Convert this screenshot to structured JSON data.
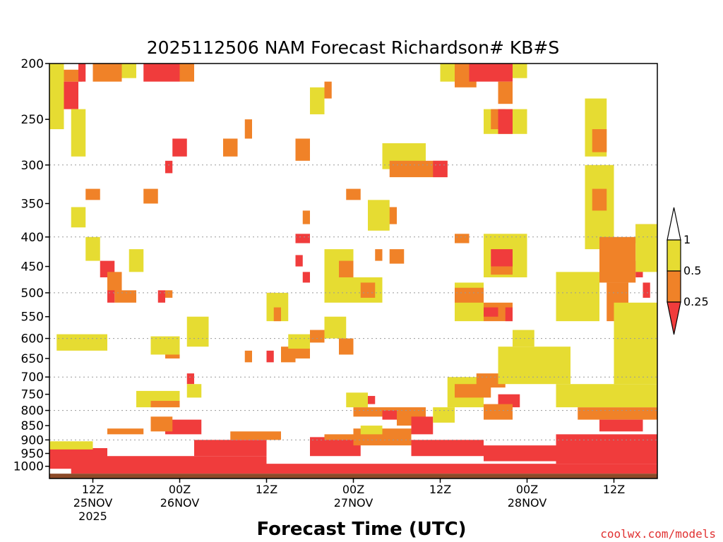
{
  "chart_data": {
    "type": "heatmap",
    "title": "2025112506 NAM Forecast Richardson# KB#S",
    "xlabel": "Forecast Time (UTC)",
    "ylabel": "",
    "y_scale": "log-pressure",
    "y_inverted": true,
    "ylim": [
      1050,
      200
    ],
    "y_ticks": [
      "200",
      "250",
      "300",
      "350",
      "400",
      "450",
      "500",
      "550",
      "600",
      "650",
      "700",
      "750",
      "800",
      "850",
      "900",
      "950",
      "1000"
    ],
    "x_ticks": [
      {
        "line1": "12Z",
        "line2": "25NOV",
        "line3": "2025",
        "hour": 6
      },
      {
        "line1": "00Z",
        "line2": "26NOV",
        "line3": "",
        "hour": 18
      },
      {
        "line1": "12Z",
        "line2": "",
        "line3": "",
        "hour": 30
      },
      {
        "line1": "00Z",
        "line2": "27NOV",
        "line3": "",
        "hour": 42
      },
      {
        "line1": "12Z",
        "line2": "",
        "line3": "",
        "hour": 54
      },
      {
        "line1": "00Z",
        "line2": "28NOV",
        "line3": "",
        "hour": 66
      },
      {
        "line1": "12Z",
        "line2": "",
        "line3": "",
        "hour": 78
      }
    ],
    "xlim_hours": [
      0,
      84
    ],
    "dotted_gridlines_hpa": [
      300,
      400,
      500,
      600,
      700,
      800,
      900
    ],
    "colorbar": {
      "labels": [
        "1",
        "0.5",
        "0.25"
      ],
      "colors": {
        "0.5-1": "#e6dc32",
        "0.25-0.5": "#f08228",
        "lt0.25": "#f03c3c",
        "gt1": "#ffffff"
      }
    },
    "colors": {
      "yellow": "#e6dc32",
      "orange": "#f08228",
      "red": "#f03c3c",
      "ground": "#8c4a28"
    },
    "regions": [
      {
        "h0": 0,
        "h1": 2,
        "p0": 200,
        "p1": 260,
        "c": "yellow"
      },
      {
        "h0": 2,
        "h1": 4,
        "p0": 215,
        "p1": 240,
        "c": "red"
      },
      {
        "h0": 2,
        "h1": 4.5,
        "p0": 205,
        "p1": 215,
        "c": "orange"
      },
      {
        "h0": 3,
        "h1": 5,
        "p0": 240,
        "p1": 290,
        "c": "yellow"
      },
      {
        "h0": 4,
        "h1": 5,
        "p0": 200,
        "p1": 215,
        "c": "red"
      },
      {
        "h0": 6,
        "h1": 10,
        "p0": 200,
        "p1": 215,
        "c": "orange"
      },
      {
        "h0": 10,
        "h1": 12,
        "p0": 200,
        "p1": 212,
        "c": "yellow"
      },
      {
        "h0": 13,
        "h1": 16,
        "p0": 200,
        "p1": 215,
        "c": "red"
      },
      {
        "h0": 16,
        "h1": 18,
        "p0": 200,
        "p1": 215,
        "c": "red"
      },
      {
        "h0": 18,
        "h1": 20,
        "p0": 200,
        "p1": 215,
        "c": "orange"
      },
      {
        "h0": 17,
        "h1": 19,
        "p0": 270,
        "p1": 290,
        "c": "red"
      },
      {
        "h0": 16,
        "h1": 17,
        "p0": 295,
        "p1": 310,
        "c": "red"
      },
      {
        "h0": 13,
        "h1": 15,
        "p0": 330,
        "p1": 350,
        "c": "orange"
      },
      {
        "h0": 5,
        "h1": 7,
        "p0": 330,
        "p1": 345,
        "c": "orange"
      },
      {
        "h0": 3,
        "h1": 5,
        "p0": 355,
        "p1": 385,
        "c": "yellow"
      },
      {
        "h0": 24,
        "h1": 26,
        "p0": 270,
        "p1": 290,
        "c": "orange"
      },
      {
        "h0": 34,
        "h1": 36,
        "p0": 270,
        "p1": 295,
        "c": "orange"
      },
      {
        "h0": 36,
        "h1": 38,
        "p0": 220,
        "p1": 245,
        "c": "yellow"
      },
      {
        "h0": 38,
        "h1": 39,
        "p0": 215,
        "p1": 230,
        "c": "orange"
      },
      {
        "h0": 27,
        "h1": 28,
        "p0": 250,
        "p1": 270,
        "c": "orange"
      },
      {
        "h0": 46,
        "h1": 52,
        "p0": 275,
        "p1": 305,
        "c": "yellow"
      },
      {
        "h0": 47,
        "h1": 55,
        "p0": 295,
        "p1": 315,
        "c": "orange"
      },
      {
        "h0": 53,
        "h1": 55,
        "p0": 295,
        "p1": 315,
        "c": "red"
      },
      {
        "h0": 54,
        "h1": 56,
        "p0": 200,
        "p1": 215,
        "c": "yellow"
      },
      {
        "h0": 56,
        "h1": 59,
        "p0": 200,
        "p1": 220,
        "c": "orange"
      },
      {
        "h0": 58,
        "h1": 64,
        "p0": 200,
        "p1": 215,
        "c": "red"
      },
      {
        "h0": 64,
        "h1": 66,
        "p0": 200,
        "p1": 212,
        "c": "yellow"
      },
      {
        "h0": 60,
        "h1": 66,
        "p0": 240,
        "p1": 265,
        "c": "yellow"
      },
      {
        "h0": 61,
        "h1": 63,
        "p0": 240,
        "p1": 260,
        "c": "orange"
      },
      {
        "h0": 62,
        "h1": 64,
        "p0": 240,
        "p1": 265,
        "c": "red"
      },
      {
        "h0": 62,
        "h1": 64,
        "p0": 215,
        "p1": 235,
        "c": "orange"
      },
      {
        "h0": 46,
        "h1": 48,
        "p0": 355,
        "p1": 380,
        "c": "orange"
      },
      {
        "h0": 44,
        "h1": 47,
        "p0": 345,
        "p1": 390,
        "c": "yellow"
      },
      {
        "h0": 41,
        "h1": 43,
        "p0": 330,
        "p1": 345,
        "c": "orange"
      },
      {
        "h0": 34,
        "h1": 36,
        "p0": 395,
        "p1": 410,
        "c": "red"
      },
      {
        "h0": 35,
        "h1": 36,
        "p0": 360,
        "p1": 380,
        "c": "orange"
      },
      {
        "h0": 34,
        "h1": 35,
        "p0": 430,
        "p1": 450,
        "c": "red"
      },
      {
        "h0": 35,
        "h1": 36,
        "p0": 460,
        "p1": 480,
        "c": "red"
      },
      {
        "h0": 60,
        "h1": 66,
        "p0": 395,
        "p1": 470,
        "c": "yellow"
      },
      {
        "h0": 61,
        "h1": 64,
        "p0": 420,
        "p1": 450,
        "c": "red"
      },
      {
        "h0": 61,
        "h1": 64,
        "p0": 450,
        "p1": 465,
        "c": "orange"
      },
      {
        "h0": 56,
        "h1": 58,
        "p0": 395,
        "p1": 410,
        "c": "orange"
      },
      {
        "h0": 47,
        "h1": 49,
        "p0": 420,
        "p1": 445,
        "c": "orange"
      },
      {
        "h0": 45,
        "h1": 46,
        "p0": 420,
        "p1": 440,
        "c": "orange"
      },
      {
        "h0": 7,
        "h1": 9,
        "p0": 440,
        "p1": 470,
        "c": "red"
      },
      {
        "h0": 5,
        "h1": 7,
        "p0": 400,
        "p1": 440,
        "c": "yellow"
      },
      {
        "h0": 8,
        "h1": 10,
        "p0": 460,
        "p1": 500,
        "c": "orange"
      },
      {
        "h0": 9,
        "h1": 12,
        "p0": 495,
        "p1": 520,
        "c": "orange"
      },
      {
        "h0": 8,
        "h1": 9,
        "p0": 495,
        "p1": 520,
        "c": "red"
      },
      {
        "h0": 15,
        "h1": 16,
        "p0": 495,
        "p1": 520,
        "c": "red"
      },
      {
        "h0": 16,
        "h1": 17,
        "p0": 495,
        "p1": 510,
        "c": "orange"
      },
      {
        "h0": 11,
        "h1": 13,
        "p0": 420,
        "p1": 460,
        "c": "yellow"
      },
      {
        "h0": 3,
        "h1": 7,
        "p0": 595,
        "p1": 620,
        "c": "orange"
      },
      {
        "h0": 1,
        "h1": 8,
        "p0": 590,
        "p1": 630,
        "c": "yellow"
      },
      {
        "h0": 16,
        "h1": 18,
        "p0": 620,
        "p1": 650,
        "c": "orange"
      },
      {
        "h0": 14,
        "h1": 18,
        "p0": 595,
        "p1": 640,
        "c": "yellow"
      },
      {
        "h0": 19,
        "h1": 22,
        "p0": 550,
        "p1": 620,
        "c": "yellow"
      },
      {
        "h0": 19,
        "h1": 20,
        "p0": 690,
        "p1": 720,
        "c": "red"
      },
      {
        "h0": 19,
        "h1": 21,
        "p0": 720,
        "p1": 760,
        "c": "yellow"
      },
      {
        "h0": 12,
        "h1": 18,
        "p0": 740,
        "p1": 790,
        "c": "yellow"
      },
      {
        "h0": 14,
        "h1": 18,
        "p0": 770,
        "p1": 790,
        "c": "orange"
      },
      {
        "h0": 16,
        "h1": 21,
        "p0": 830,
        "p1": 880,
        "c": "red"
      },
      {
        "h0": 14,
        "h1": 17,
        "p0": 820,
        "p1": 870,
        "c": "orange"
      },
      {
        "h0": 8,
        "h1": 13,
        "p0": 860,
        "p1": 880,
        "c": "orange"
      },
      {
        "h0": 30,
        "h1": 31,
        "p0": 500,
        "p1": 520,
        "c": "red"
      },
      {
        "h0": 30,
        "h1": 31,
        "p0": 630,
        "p1": 660,
        "c": "red"
      },
      {
        "h0": 27,
        "h1": 28,
        "p0": 630,
        "p1": 660,
        "c": "orange"
      },
      {
        "h0": 32,
        "h1": 34,
        "p0": 620,
        "p1": 660,
        "c": "orange"
      },
      {
        "h0": 34,
        "h1": 36,
        "p0": 620,
        "p1": 650,
        "c": "orange"
      },
      {
        "h0": 33,
        "h1": 36,
        "p0": 590,
        "p1": 625,
        "c": "yellow"
      },
      {
        "h0": 36,
        "h1": 38,
        "p0": 580,
        "p1": 610,
        "c": "orange"
      },
      {
        "h0": 38,
        "h1": 41,
        "p0": 550,
        "p1": 600,
        "c": "yellow"
      },
      {
        "h0": 40,
        "h1": 42,
        "p0": 600,
        "p1": 640,
        "c": "orange"
      },
      {
        "h0": 38,
        "h1": 42,
        "p0": 420,
        "p1": 520,
        "c": "yellow"
      },
      {
        "h0": 40,
        "h1": 42,
        "p0": 440,
        "p1": 470,
        "c": "orange"
      },
      {
        "h0": 42,
        "h1": 46,
        "p0": 470,
        "p1": 520,
        "c": "yellow"
      },
      {
        "h0": 43,
        "h1": 45,
        "p0": 480,
        "p1": 510,
        "c": "orange"
      },
      {
        "h0": 30,
        "h1": 33,
        "p0": 500,
        "p1": 560,
        "c": "yellow"
      },
      {
        "h0": 31,
        "h1": 32,
        "p0": 530,
        "p1": 560,
        "c": "orange"
      },
      {
        "h0": 43,
        "h1": 45,
        "p0": 755,
        "p1": 780,
        "c": "red"
      },
      {
        "h0": 41,
        "h1": 44,
        "p0": 745,
        "p1": 790,
        "c": "yellow"
      },
      {
        "h0": 42,
        "h1": 52,
        "p0": 790,
        "p1": 820,
        "c": "orange"
      },
      {
        "h0": 46,
        "h1": 48,
        "p0": 800,
        "p1": 830,
        "c": "red"
      },
      {
        "h0": 48,
        "h1": 52,
        "p0": 810,
        "p1": 850,
        "c": "orange"
      },
      {
        "h0": 50,
        "h1": 53,
        "p0": 820,
        "p1": 880,
        "c": "red"
      },
      {
        "h0": 53,
        "h1": 56,
        "p0": 790,
        "p1": 840,
        "c": "yellow"
      },
      {
        "h0": 55,
        "h1": 60,
        "p0": 700,
        "p1": 790,
        "c": "yellow"
      },
      {
        "h0": 56,
        "h1": 61,
        "p0": 720,
        "p1": 760,
        "c": "orange"
      },
      {
        "h0": 59,
        "h1": 63,
        "p0": 690,
        "p1": 730,
        "c": "orange"
      },
      {
        "h0": 62,
        "h1": 65,
        "p0": 750,
        "p1": 790,
        "c": "red"
      },
      {
        "h0": 60,
        "h1": 64,
        "p0": 780,
        "p1": 830,
        "c": "orange"
      },
      {
        "h0": 64,
        "h1": 72,
        "p0": 640,
        "p1": 680,
        "c": "orange"
      },
      {
        "h0": 62,
        "h1": 72,
        "p0": 620,
        "p1": 720,
        "c": "yellow"
      },
      {
        "h0": 56,
        "h1": 60,
        "p0": 480,
        "p1": 560,
        "c": "yellow"
      },
      {
        "h0": 56,
        "h1": 60,
        "p0": 490,
        "p1": 520,
        "c": "orange"
      },
      {
        "h0": 60,
        "h1": 64,
        "p0": 520,
        "p1": 560,
        "c": "orange"
      },
      {
        "h0": 60,
        "h1": 62,
        "p0": 530,
        "p1": 550,
        "c": "red"
      },
      {
        "h0": 63,
        "h1": 64,
        "p0": 530,
        "p1": 560,
        "c": "red"
      },
      {
        "h0": 64,
        "h1": 67,
        "p0": 580,
        "p1": 620,
        "c": "yellow"
      },
      {
        "h0": 70,
        "h1": 76,
        "p0": 460,
        "p1": 560,
        "c": "yellow"
      },
      {
        "h0": 74,
        "h1": 78,
        "p0": 300,
        "p1": 420,
        "c": "yellow"
      },
      {
        "h0": 75,
        "h1": 77,
        "p0": 330,
        "p1": 360,
        "c": "orange"
      },
      {
        "h0": 76,
        "h1": 81,
        "p0": 400,
        "p1": 480,
        "c": "orange"
      },
      {
        "h0": 77,
        "h1": 80,
        "p0": 480,
        "p1": 560,
        "c": "orange"
      },
      {
        "h0": 79,
        "h1": 84,
        "p0": 560,
        "p1": 650,
        "c": "orange"
      },
      {
        "h0": 78,
        "h1": 84,
        "p0": 520,
        "p1": 720,
        "c": "yellow"
      },
      {
        "h0": 81,
        "h1": 82,
        "p0": 440,
        "p1": 470,
        "c": "red"
      },
      {
        "h0": 82,
        "h1": 83,
        "p0": 480,
        "p1": 510,
        "c": "red"
      },
      {
        "h0": 81,
        "h1": 84,
        "p0": 380,
        "p1": 410,
        "c": "orange"
      },
      {
        "h0": 81,
        "h1": 84,
        "p0": 380,
        "p1": 460,
        "c": "yellow"
      },
      {
        "h0": 74,
        "h1": 77,
        "p0": 230,
        "p1": 290,
        "c": "yellow"
      },
      {
        "h0": 75,
        "h1": 77,
        "p0": 260,
        "p1": 285,
        "c": "orange"
      },
      {
        "h0": 73,
        "h1": 84,
        "p0": 790,
        "p1": 830,
        "c": "orange"
      },
      {
        "h0": 76,
        "h1": 82,
        "p0": 830,
        "p1": 870,
        "c": "red"
      },
      {
        "h0": 70,
        "h1": 84,
        "p0": 720,
        "p1": 790,
        "c": "yellow"
      },
      {
        "h0": 0,
        "h1": 8,
        "p0": 930,
        "p1": 1010,
        "c": "red"
      },
      {
        "h0": 0,
        "h1": 6,
        "p0": 905,
        "p1": 935,
        "c": "yellow"
      },
      {
        "h0": 3,
        "h1": 30,
        "p0": 960,
        "p1": 1030,
        "c": "red"
      },
      {
        "h0": 30,
        "h1": 84,
        "p0": 990,
        "p1": 1030,
        "c": "red"
      },
      {
        "h0": 36,
        "h1": 43,
        "p0": 890,
        "p1": 960,
        "c": "red"
      },
      {
        "h0": 38,
        "h1": 43,
        "p0": 880,
        "p1": 900,
        "c": "orange"
      },
      {
        "h0": 42,
        "h1": 50,
        "p0": 860,
        "p1": 920,
        "c": "orange"
      },
      {
        "h0": 43,
        "h1": 46,
        "p0": 850,
        "p1": 880,
        "c": "yellow"
      },
      {
        "h0": 50,
        "h1": 60,
        "p0": 900,
        "p1": 960,
        "c": "red"
      },
      {
        "h0": 60,
        "h1": 70,
        "p0": 920,
        "p1": 980,
        "c": "red"
      },
      {
        "h0": 70,
        "h1": 84,
        "p0": 880,
        "p1": 990,
        "c": "red"
      },
      {
        "h0": 20,
        "h1": 30,
        "p0": 900,
        "p1": 960,
        "c": "red"
      },
      {
        "h0": 25,
        "h1": 32,
        "p0": 870,
        "p1": 900,
        "c": "orange"
      }
    ]
  },
  "footer": {
    "credit": "coolwx.com/models"
  }
}
